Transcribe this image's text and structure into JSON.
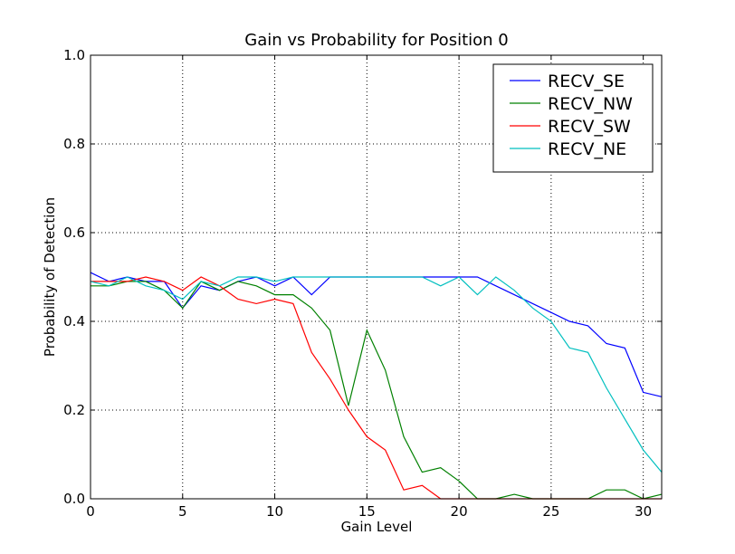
{
  "chart_data": {
    "type": "line",
    "title": "Gain vs Probability for Position 0",
    "xlabel": "Gain Level",
    "ylabel": "Probability of Detection",
    "xlim": [
      0,
      31
    ],
    "ylim": [
      0.0,
      1.0
    ],
    "xticks": [
      0,
      5,
      10,
      15,
      20,
      25,
      30
    ],
    "yticks": [
      0.0,
      0.2,
      0.4,
      0.6,
      0.8,
      1.0
    ],
    "xtick_labels": [
      "0",
      "5",
      "10",
      "15",
      "20",
      "25",
      "30"
    ],
    "ytick_labels": [
      "0.0",
      "0.2",
      "0.4",
      "0.6",
      "0.8",
      "1.0"
    ],
    "grid": true,
    "legend_position": "top-right",
    "x": [
      0,
      1,
      2,
      3,
      4,
      5,
      6,
      7,
      8,
      9,
      10,
      11,
      12,
      13,
      14,
      15,
      16,
      17,
      18,
      19,
      20,
      21,
      22,
      23,
      24,
      25,
      26,
      27,
      28,
      29,
      30,
      31
    ],
    "series": [
      {
        "name": "RECV_SE",
        "color": "#0000ff",
        "values": [
          0.51,
          0.49,
          0.5,
          0.49,
          0.49,
          0.43,
          0.48,
          0.47,
          0.49,
          0.5,
          0.48,
          0.5,
          0.46,
          0.5,
          0.5,
          0.5,
          0.5,
          0.5,
          0.5,
          0.5,
          0.5,
          0.5,
          0.48,
          0.46,
          0.44,
          0.42,
          0.4,
          0.39,
          0.35,
          0.34,
          0.24,
          0.23
        ]
      },
      {
        "name": "RECV_NW",
        "color": "#008000",
        "values": [
          0.48,
          0.48,
          0.49,
          0.49,
          0.47,
          0.43,
          0.49,
          0.47,
          0.49,
          0.48,
          0.46,
          0.46,
          0.43,
          0.38,
          0.21,
          0.38,
          0.29,
          0.14,
          0.06,
          0.07,
          0.04,
          0.0,
          0.0,
          0.01,
          0.0,
          0.0,
          0.0,
          0.0,
          0.02,
          0.02,
          0.0,
          0.01
        ]
      },
      {
        "name": "RECV_SW",
        "color": "#ff0000",
        "values": [
          0.49,
          0.49,
          0.49,
          0.5,
          0.49,
          0.47,
          0.5,
          0.48,
          0.45,
          0.44,
          0.45,
          0.44,
          0.33,
          0.27,
          0.2,
          0.14,
          0.11,
          0.02,
          0.03,
          0.0,
          0.0,
          0.0,
          0.0,
          0.0,
          0.0,
          0.0,
          0.0,
          0.0,
          0.0,
          0.0,
          0.0,
          0.0
        ]
      },
      {
        "name": "RECV_NE",
        "color": "#00bfbf",
        "values": [
          0.49,
          0.48,
          0.5,
          0.48,
          0.47,
          0.45,
          0.49,
          0.48,
          0.5,
          0.5,
          0.49,
          0.5,
          0.5,
          0.5,
          0.5,
          0.5,
          0.5,
          0.5,
          0.5,
          0.48,
          0.5,
          0.46,
          0.5,
          0.47,
          0.43,
          0.4,
          0.34,
          0.33,
          0.25,
          0.18,
          0.11,
          0.06
        ]
      }
    ]
  }
}
